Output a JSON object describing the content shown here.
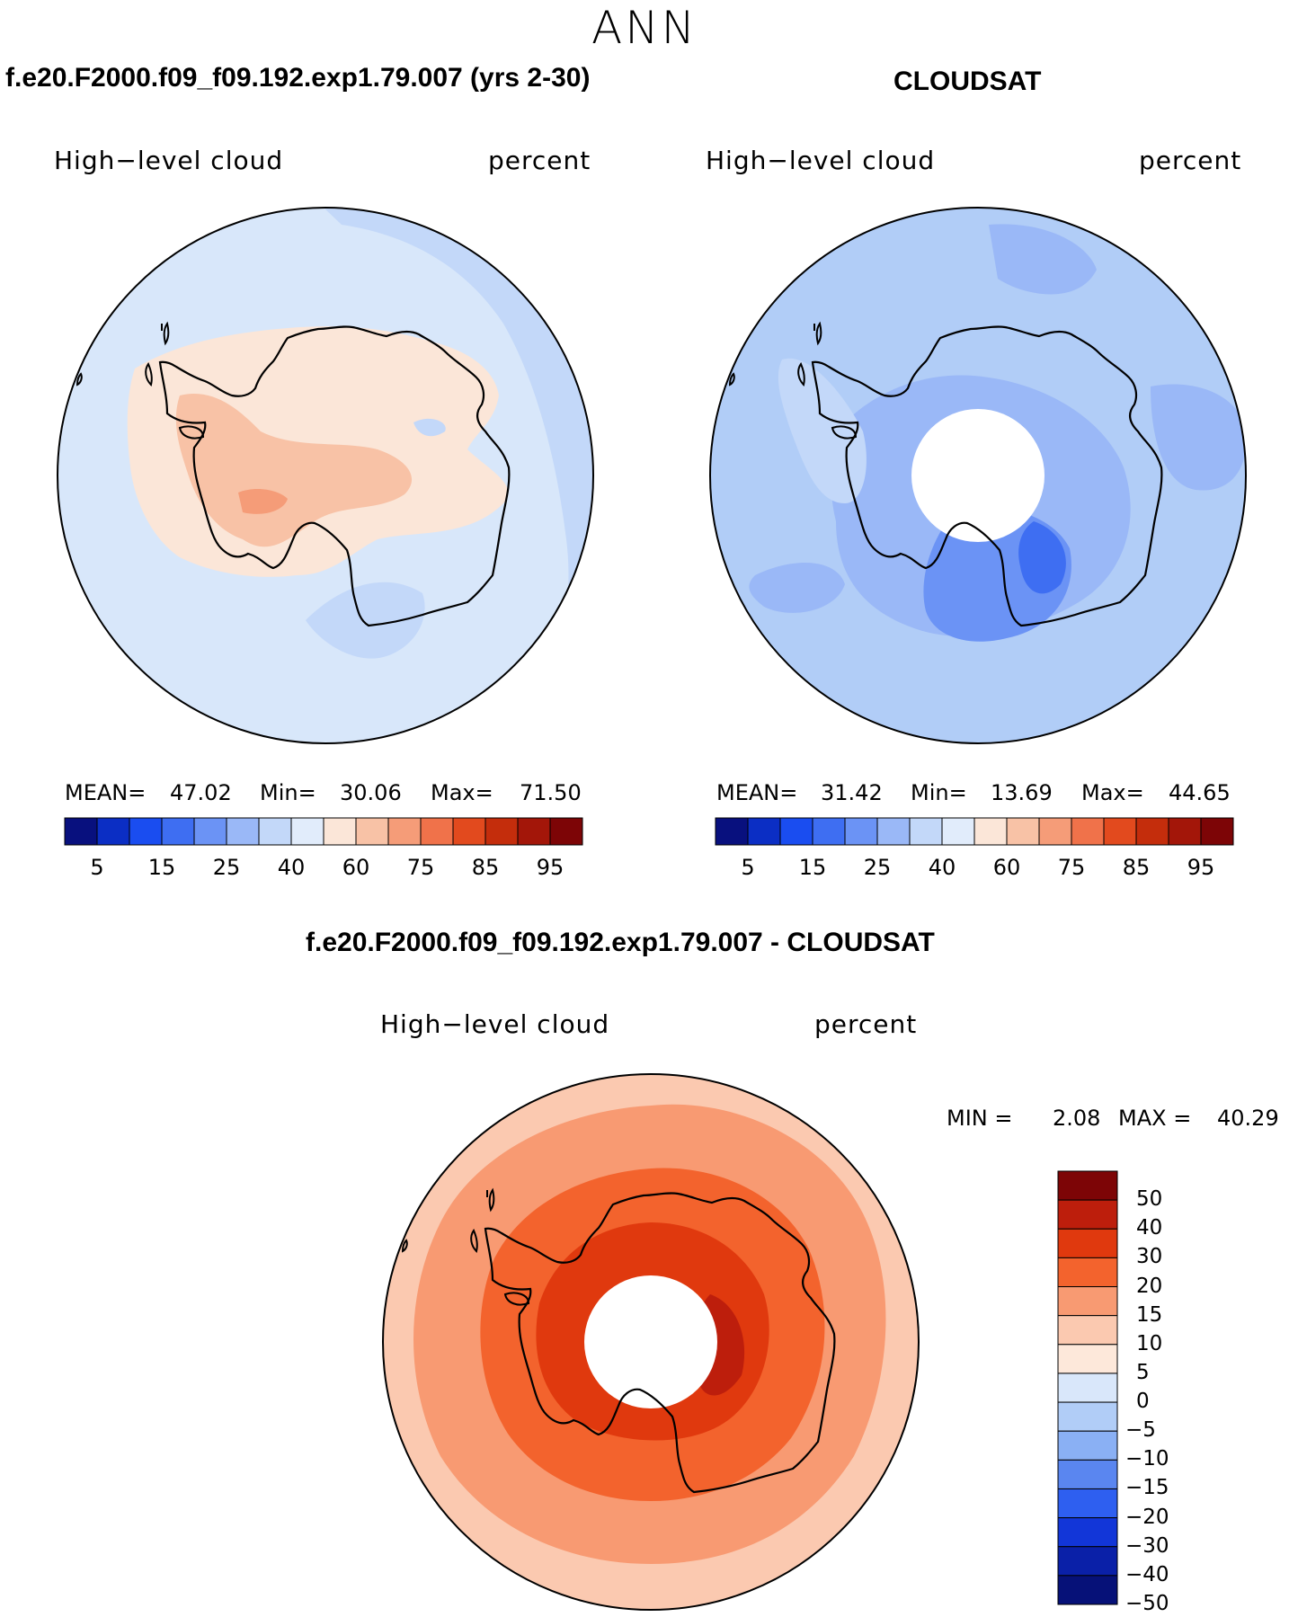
{
  "page": {
    "title": "ANN"
  },
  "panels": [
    {
      "id": "model",
      "case_title": "f.e20.F2000.f09_f09.192.exp1.79.007 (yrs 2-30)",
      "variable": "High−level cloud",
      "units": "percent",
      "stats": {
        "mean_label": "MEAN=",
        "mean": "47.02",
        "min_label": "Min=",
        "min": "30.06",
        "max_label": "Max=",
        "max": "71.50"
      },
      "background_color": "#d8e7fa",
      "has_polar_hole": false
    },
    {
      "id": "obs",
      "case_title": "CLOUDSAT",
      "variable": "High−level cloud",
      "units": "percent",
      "stats": {
        "mean_label": "MEAN=",
        "mean": "31.42",
        "min_label": "Min=",
        "min": "13.69",
        "max_label": "Max=",
        "max": "44.65"
      },
      "background_color": "#b1cdf7",
      "has_polar_hole": true
    },
    {
      "id": "diff",
      "case_title": "f.e20.F2000.f09_f09.192.exp1.79.007 - CLOUDSAT",
      "variable": "High−level cloud",
      "units": "percent",
      "stats": {
        "min_label": "MIN =",
        "min": "2.08",
        "max_label": "MAX =",
        "max": "40.29"
      },
      "background_color": "#fbc9b0",
      "has_polar_hole": true
    }
  ],
  "abs_colorbar": {
    "colors": [
      "#08107e",
      "#0b2ec4",
      "#1a4df0",
      "#3e6ef2",
      "#6b93f5",
      "#9ab8f7",
      "#c3d8f9",
      "#e1ecfb",
      "#fbe6d8",
      "#f8c2a6",
      "#f59c78",
      "#f0724a",
      "#e24a1e",
      "#c42d0c",
      "#a31609",
      "#7d0506"
    ],
    "tick_labels": [
      "5",
      "15",
      "25",
      "40",
      "60",
      "75",
      "85",
      "95"
    ]
  },
  "diff_colorbar": {
    "colors": [
      "#7d0506",
      "#bd1e0c",
      "#e0390e",
      "#f3632d",
      "#f89a72",
      "#fbc9b0",
      "#fde8da",
      "#d9e7fa",
      "#b1cdf7",
      "#8ab0f4",
      "#5a86f0",
      "#2e5ff0",
      "#1236d8",
      "#0a20a8",
      "#061178"
    ],
    "tick_labels": [
      "50",
      "40",
      "30",
      "20",
      "15",
      "10",
      "5",
      "0",
      "−5",
      "−10",
      "−15",
      "−20",
      "−30",
      "−40",
      "−50"
    ]
  }
}
